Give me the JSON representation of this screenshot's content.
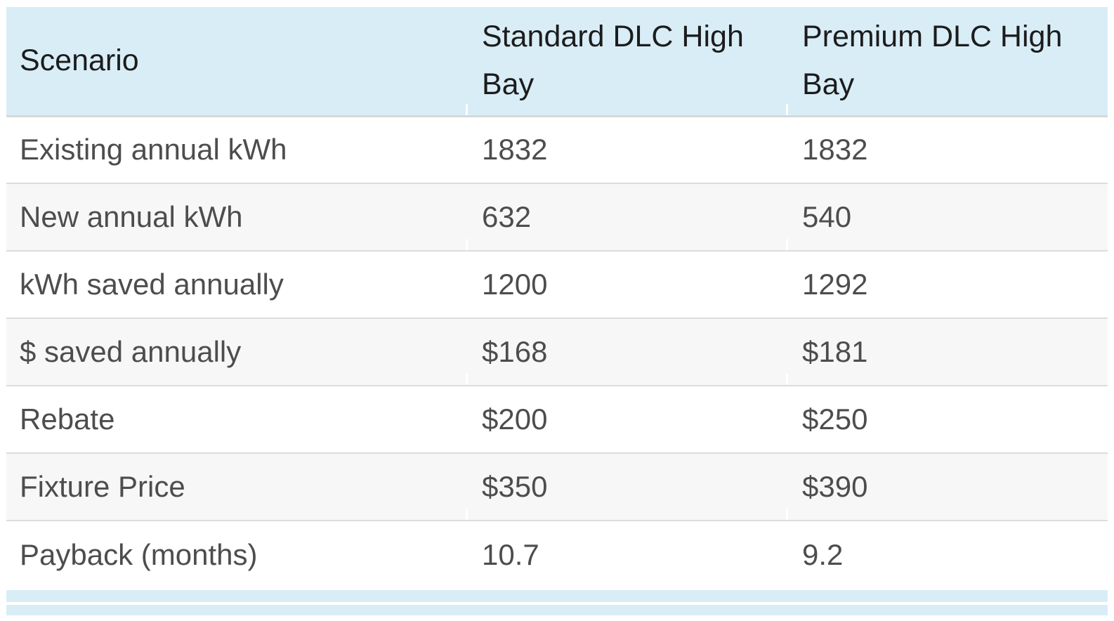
{
  "colors": {
    "header_bg": "#d9edf7",
    "stripe_bg": "#f7f7f7",
    "row_border": "#dcdcdc",
    "header_border": "#d6d8d9",
    "header_text": "#1c1c1c",
    "body_text": "#4d4d4d",
    "column_divider": "#ffffff",
    "page_bg": "#ffffff"
  },
  "table": {
    "header": [
      "Scenario",
      "Standard DLC High Bay",
      "Premium DLC High Bay"
    ],
    "rows": [
      [
        "Existing annual kWh",
        "1832",
        "1832"
      ],
      [
        "New annual kWh",
        "632",
        "540"
      ],
      [
        "kWh saved annually",
        "1200",
        "1292"
      ],
      [
        "$ saved annually",
        "$168",
        "$181"
      ],
      [
        "Rebate",
        "$200",
        "$250"
      ],
      [
        "Fixture Price",
        "$350",
        "$390"
      ],
      [
        "Payback (months)",
        "10.7",
        "9.2"
      ]
    ]
  }
}
